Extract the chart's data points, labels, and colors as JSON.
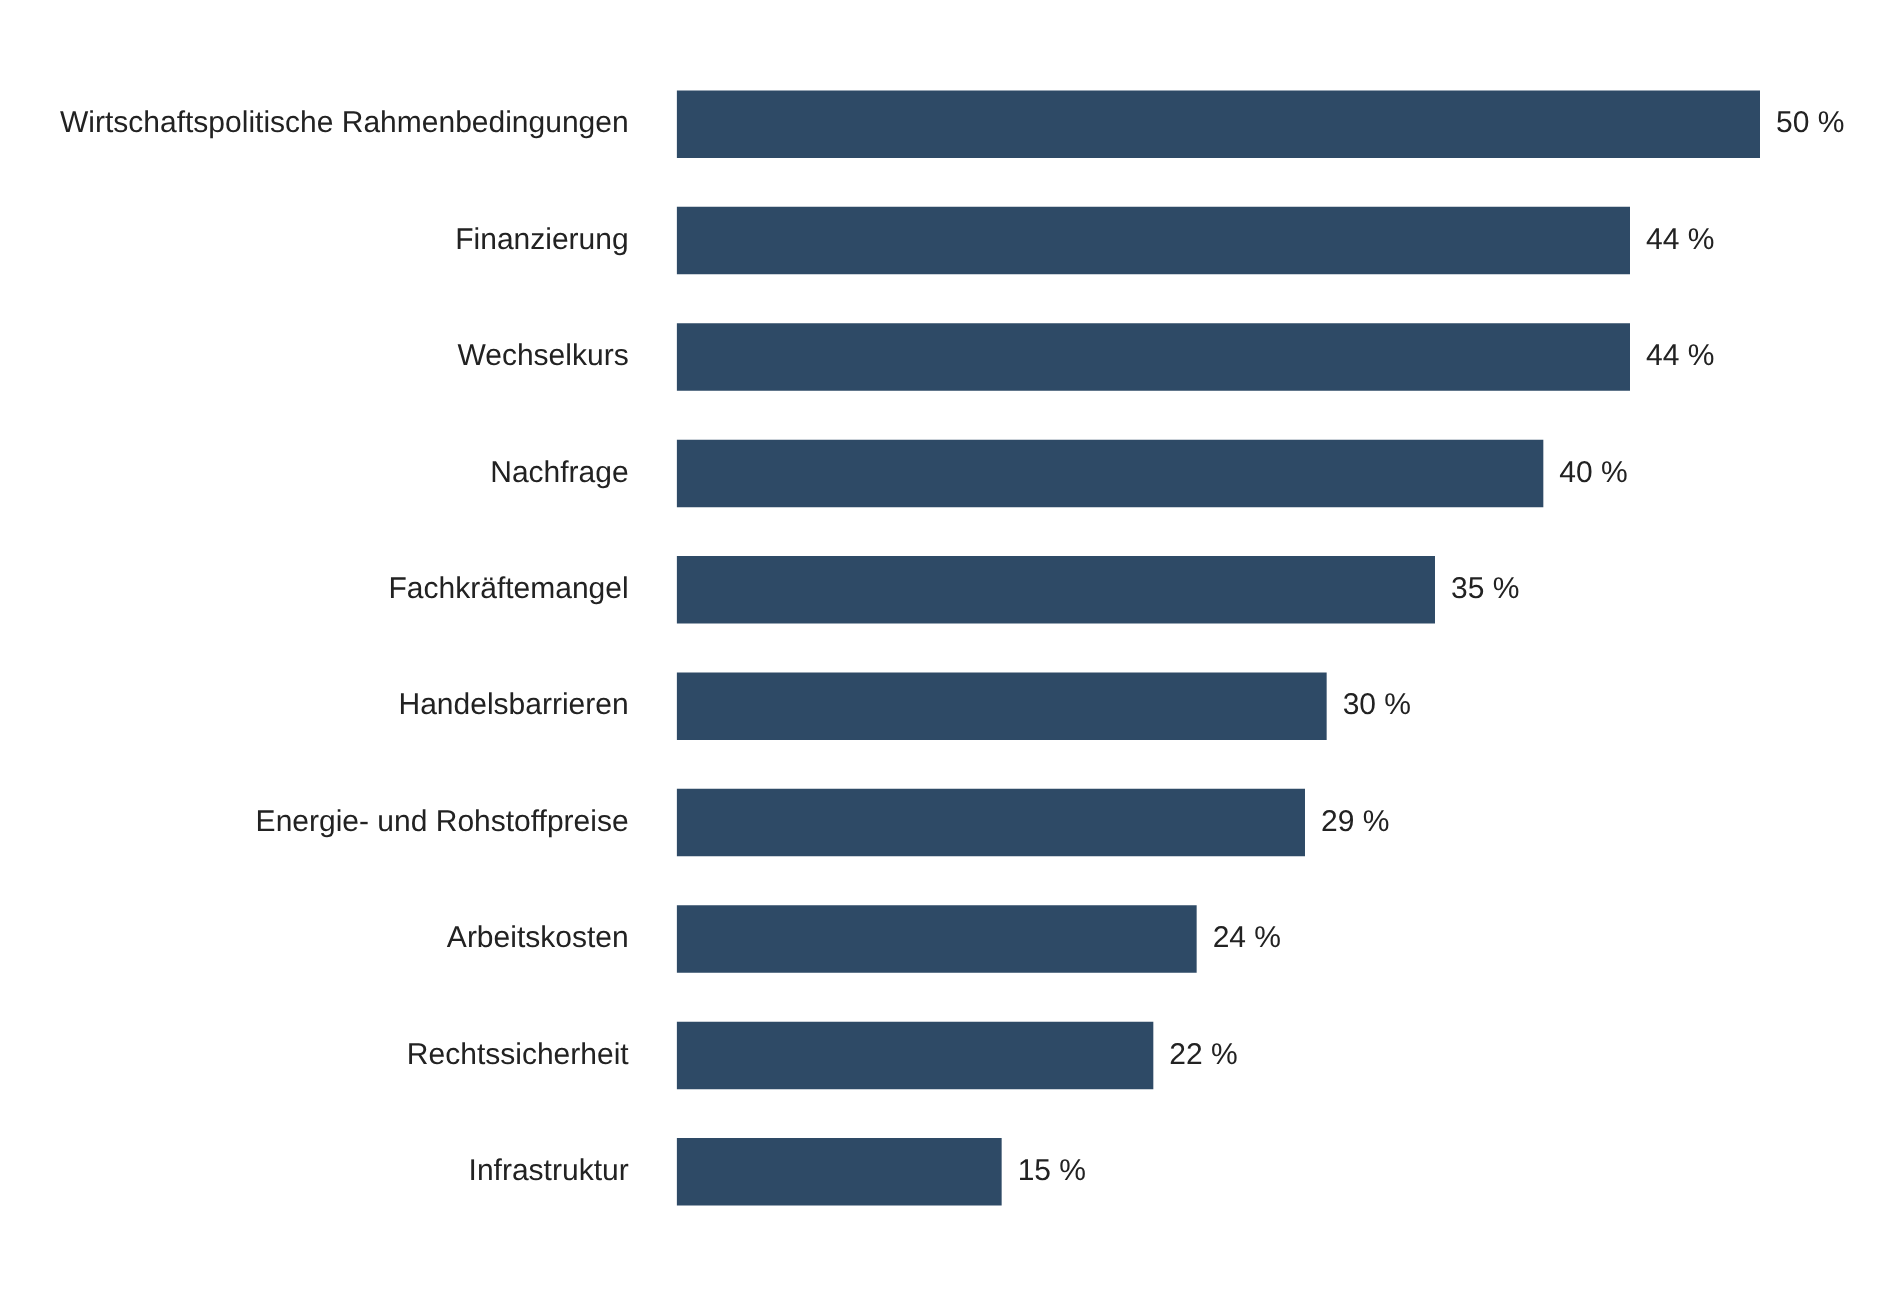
{
  "chart_data": {
    "type": "bar",
    "orientation": "horizontal",
    "tick_labels": "y",
    "legend": false,
    "categories": [
      "Wirtschaftspolitische Rahmenbedingungen",
      "Finanzierung",
      "Wechselkurs",
      "Nachfrage",
      "Fachkräftemangel",
      "Handelsbarrieren",
      "Energie- und Rohstoffpreise",
      "Arbeitskosten",
      "Rechtssicherheit",
      "Infrastruktur"
    ],
    "values": [
      50,
      44,
      44,
      40,
      35,
      30,
      29,
      24,
      22,
      15
    ],
    "value_labels": [
      "50 %",
      "44 %",
      "44 %",
      "40 %",
      "35 %",
      "30 %",
      "29 %",
      "24 %",
      "22 %",
      "15 %"
    ],
    "color": "#2e4a66"
  }
}
